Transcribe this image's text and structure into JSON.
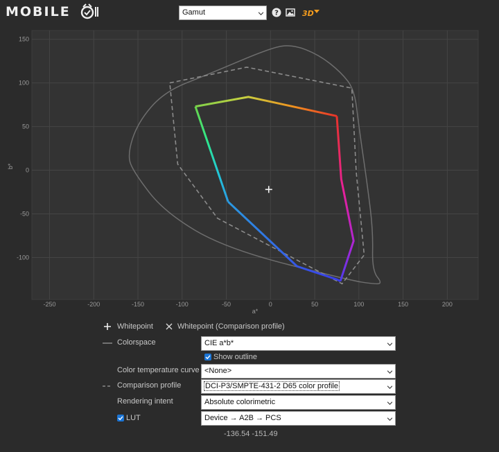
{
  "header": {
    "logo_text": "MOBILE",
    "view_select": "Gamut",
    "help_icon": "help-icon",
    "image_icon": "image-icon",
    "threed_label": "3D"
  },
  "chart_data": {
    "type": "scatter",
    "xlabel": "a*",
    "ylabel": "b*",
    "xlim": [
      -270,
      235
    ],
    "ylim": [
      -148,
      160
    ],
    "xticks": [
      -250,
      -200,
      -150,
      -100,
      -50,
      0,
      50,
      100,
      150,
      200
    ],
    "yticks": [
      150,
      100,
      50,
      0,
      -50,
      -100
    ],
    "grid": true,
    "whitepoint": [
      -2,
      -22
    ],
    "series": [
      {
        "style": "colored-solid",
        "points": [
          [
            -85,
            73
          ],
          [
            -25,
            84
          ],
          [
            75,
            62
          ],
          [
            80,
            -10
          ],
          [
            94,
            -81
          ],
          [
            79,
            -127
          ],
          [
            75,
            -125
          ],
          [
            30,
            -110
          ],
          [
            -48,
            -36
          ]
        ]
      },
      {
        "style": "gray-dashed",
        "points": [
          [
            -114,
            100
          ],
          [
            -27,
            118
          ],
          [
            92,
            94
          ],
          [
            97,
            -2
          ],
          [
            106,
            -97
          ],
          [
            81,
            -130
          ],
          [
            -60,
            -55
          ],
          [
            -105,
            7
          ]
        ]
      },
      {
        "style": "gray-solid",
        "points": [
          [
            -162,
            18
          ],
          [
            -150,
            55
          ],
          [
            -120,
            90
          ],
          [
            -70,
            110
          ],
          [
            0,
            140
          ],
          [
            25,
            144
          ],
          [
            55,
            132
          ],
          [
            80,
            112
          ],
          [
            95,
            92
          ],
          [
            100,
            50
          ],
          [
            110,
            -20
          ],
          [
            116,
            -70
          ],
          [
            115,
            -115
          ],
          [
            127,
            -130
          ],
          [
            115,
            -130
          ],
          [
            90,
            -126
          ],
          [
            -50,
            -90
          ],
          [
            -120,
            -48
          ],
          [
            -155,
            -2
          ]
        ]
      }
    ]
  },
  "legend": {
    "whitepoint": "Whitepoint",
    "whitepoint_comparison": "Whitepoint (Comparison profile)"
  },
  "form": {
    "colorspace_label": "Colorspace",
    "colorspace_value": "CIE a*b*",
    "show_outline_label": "Show outline",
    "show_outline_checked": true,
    "color_temp_label": "Color temperature curve",
    "color_temp_value": "<None>",
    "comparison_label": "Comparison profile",
    "comparison_value": "DCI-P3/SMPTE-431-2 D65 color profile",
    "intent_label": "Rendering intent",
    "intent_value": "Absolute colorimetric",
    "lut_label": "LUT",
    "lut_checked": true,
    "lut_value": "Device → A2B → PCS"
  },
  "status": {
    "coords": "-136.54 -151.49"
  }
}
